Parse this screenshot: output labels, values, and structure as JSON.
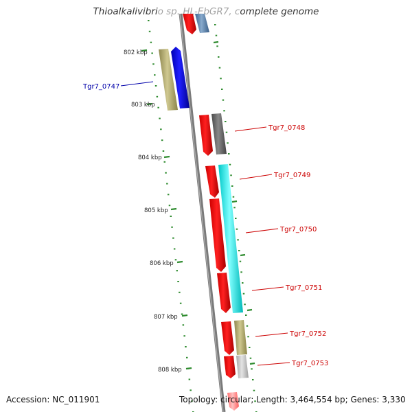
{
  "title": "Thioalkalivibrio sp. HL-EbGR7, complete genome",
  "footer": {
    "accession": "Accession: NC_011901",
    "topology": "Topology: circular; Length: 3,464,554 bp; Genes: 3,330"
  },
  "colors": {
    "backbone": "#808080",
    "tick": "#2e8b2e",
    "cds_red": "#ff0000",
    "label_red": "#cc0000",
    "label_blue": "#0000aa"
  },
  "kbp_ticks": [
    "802 kbp",
    "803 kbp",
    "804 kbp",
    "805 kbp",
    "806 kbp",
    "807 kbp",
    "808 kbp"
  ],
  "gene_labels": [
    {
      "text": "Tgr7_0747",
      "color": "#0000aa"
    },
    {
      "text": "Tgr7_0748",
      "color": "#cc0000"
    },
    {
      "text": "Tgr7_0749",
      "color": "#cc0000"
    },
    {
      "text": "Tgr7_0750",
      "color": "#cc0000"
    },
    {
      "text": "Tgr7_0751",
      "color": "#cc0000"
    },
    {
      "text": "Tgr7_0752",
      "color": "#cc0000"
    },
    {
      "text": "Tgr7_0753",
      "color": "#cc0000"
    }
  ],
  "feature_colors": {
    "cds": "#ff0000",
    "olive": "#b8b070",
    "blue": "#0000ff",
    "gray": "#6e6e6e",
    "cyan": "#00ffff",
    "lightgray": "#c8c8c8",
    "steelblue": "#5580b0",
    "pink": "#ff8888"
  }
}
